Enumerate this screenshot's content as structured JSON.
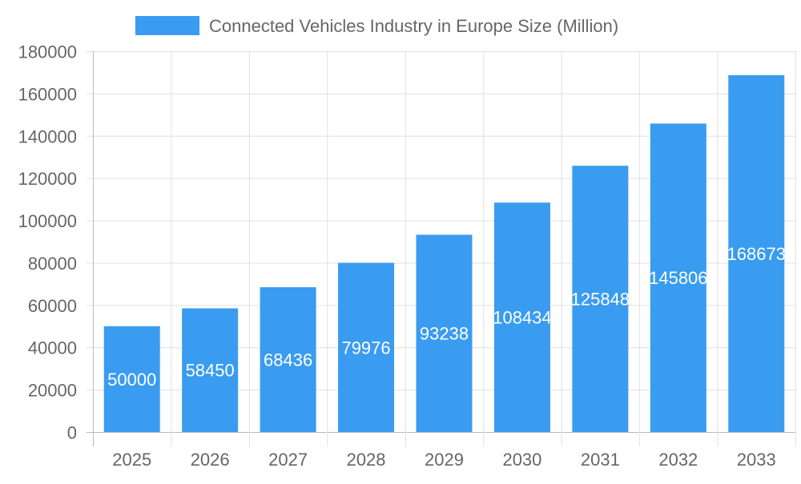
{
  "chart_data": {
    "type": "bar",
    "title": "",
    "xlabel": "",
    "ylabel": "",
    "categories": [
      "2025",
      "2026",
      "2027",
      "2028",
      "2029",
      "2030",
      "2031",
      "2032",
      "2033"
    ],
    "series": [
      {
        "name": "Connected Vehicles Industry in Europe Size (Million)",
        "values": [
          50000,
          58450,
          68436,
          79976,
          93238,
          108434,
          125848,
          145806,
          168673
        ],
        "color": "#3a9cf0"
      }
    ],
    "ylim": [
      0,
      180000
    ],
    "yticks": [
      0,
      20000,
      40000,
      60000,
      80000,
      100000,
      120000,
      140000,
      160000,
      180000
    ],
    "grid": true,
    "legend": "top",
    "data_labels": true
  }
}
